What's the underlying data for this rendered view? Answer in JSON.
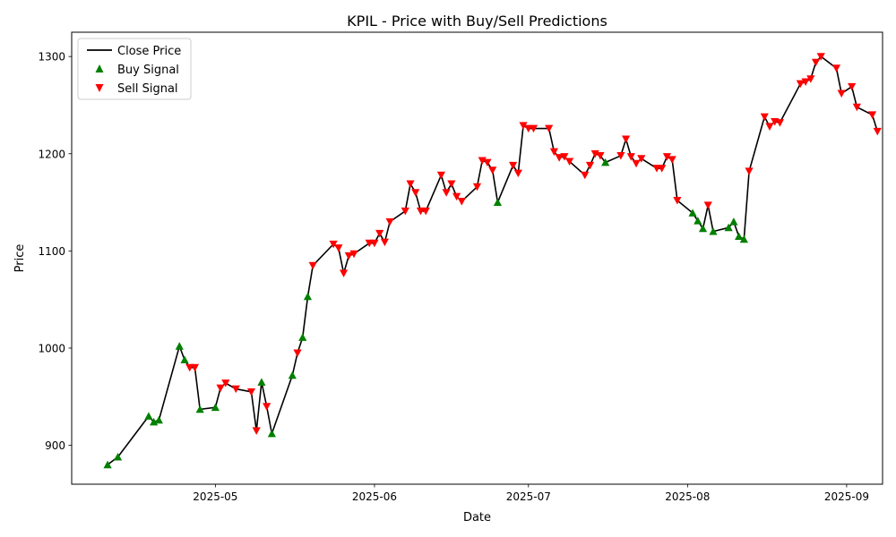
{
  "chart_data": {
    "type": "line",
    "title": "KPIL - Price with Buy/Sell Predictions",
    "xlabel": "Date",
    "ylabel": "Price",
    "xlim": [
      "2025-04-03",
      "2025-09-08"
    ],
    "ylim": [
      860,
      1325
    ],
    "x_ticks": [
      "2025-05-01",
      "2025-06-01",
      "2025-07-01",
      "2025-08-01",
      "2025-09-01"
    ],
    "x_tick_labels": [
      "2025-05",
      "2025-06",
      "2025-07",
      "2025-08",
      "2025-09"
    ],
    "y_ticks": [
      900,
      1000,
      1100,
      1200,
      1300
    ],
    "grid": false,
    "legend_position": "top-left",
    "series": [
      {
        "name": "Close Price",
        "kind": "line",
        "color": "#000000",
        "points": [
          [
            "2025-04-10",
            880
          ],
          [
            "2025-04-12",
            888
          ],
          [
            "2025-04-18",
            930
          ],
          [
            "2025-04-19",
            924
          ],
          [
            "2025-04-20",
            926
          ],
          [
            "2025-04-24",
            1002
          ],
          [
            "2025-04-25",
            988
          ],
          [
            "2025-04-26",
            980
          ],
          [
            "2025-04-27",
            980
          ],
          [
            "2025-04-28",
            937
          ],
          [
            "2025-05-01",
            939
          ],
          [
            "2025-05-02",
            959
          ],
          [
            "2025-05-03",
            964
          ],
          [
            "2025-05-05",
            958
          ],
          [
            "2025-05-08",
            955
          ],
          [
            "2025-05-09",
            915
          ],
          [
            "2025-05-10",
            965
          ],
          [
            "2025-05-11",
            940
          ],
          [
            "2025-05-12",
            912
          ],
          [
            "2025-05-16",
            972
          ],
          [
            "2025-05-17",
            995
          ],
          [
            "2025-05-18",
            1011
          ],
          [
            "2025-05-19",
            1053
          ],
          [
            "2025-05-20",
            1085
          ],
          [
            "2025-05-24",
            1107
          ],
          [
            "2025-05-25",
            1103
          ],
          [
            "2025-05-26",
            1077
          ],
          [
            "2025-05-27",
            1095
          ],
          [
            "2025-05-28",
            1097
          ],
          [
            "2025-05-31",
            1108
          ],
          [
            "2025-06-01",
            1108
          ],
          [
            "2025-06-02",
            1118
          ],
          [
            "2025-06-03",
            1109
          ],
          [
            "2025-06-04",
            1130
          ],
          [
            "2025-06-07",
            1141
          ],
          [
            "2025-06-08",
            1169
          ],
          [
            "2025-06-09",
            1160
          ],
          [
            "2025-06-10",
            1141
          ],
          [
            "2025-06-11",
            1141
          ],
          [
            "2025-06-14",
            1178
          ],
          [
            "2025-06-15",
            1160
          ],
          [
            "2025-06-16",
            1169
          ],
          [
            "2025-06-17",
            1156
          ],
          [
            "2025-06-18",
            1151
          ],
          [
            "2025-06-21",
            1166
          ],
          [
            "2025-06-22",
            1193
          ],
          [
            "2025-06-23",
            1191
          ],
          [
            "2025-06-24",
            1183
          ],
          [
            "2025-06-25",
            1150
          ],
          [
            "2025-06-28",
            1188
          ],
          [
            "2025-06-29",
            1180
          ],
          [
            "2025-06-30",
            1229
          ],
          [
            "2025-07-01",
            1226
          ],
          [
            "2025-07-02",
            1226
          ],
          [
            "2025-07-05",
            1226
          ],
          [
            "2025-07-06",
            1202
          ],
          [
            "2025-07-07",
            1196
          ],
          [
            "2025-07-08",
            1197
          ],
          [
            "2025-07-09",
            1192
          ],
          [
            "2025-07-12",
            1178
          ],
          [
            "2025-07-13",
            1188
          ],
          [
            "2025-07-14",
            1200
          ],
          [
            "2025-07-15",
            1198
          ],
          [
            "2025-07-16",
            1191
          ],
          [
            "2025-07-19",
            1198
          ],
          [
            "2025-07-20",
            1215
          ],
          [
            "2025-07-21",
            1197
          ],
          [
            "2025-07-22",
            1190
          ],
          [
            "2025-07-23",
            1195
          ],
          [
            "2025-07-26",
            1185
          ],
          [
            "2025-07-27",
            1185
          ],
          [
            "2025-07-28",
            1197
          ],
          [
            "2025-07-29",
            1194
          ],
          [
            "2025-07-30",
            1152
          ],
          [
            "2025-08-02",
            1139
          ],
          [
            "2025-08-03",
            1131
          ],
          [
            "2025-08-04",
            1123
          ],
          [
            "2025-08-05",
            1147
          ],
          [
            "2025-08-06",
            1120
          ],
          [
            "2025-08-09",
            1124
          ],
          [
            "2025-08-10",
            1130
          ],
          [
            "2025-08-11",
            1115
          ],
          [
            "2025-08-12",
            1112
          ],
          [
            "2025-08-13",
            1182
          ],
          [
            "2025-08-16",
            1238
          ],
          [
            "2025-08-17",
            1228
          ],
          [
            "2025-08-18",
            1233
          ],
          [
            "2025-08-19",
            1232
          ],
          [
            "2025-08-23",
            1272
          ],
          [
            "2025-08-24",
            1274
          ],
          [
            "2025-08-25",
            1277
          ],
          [
            "2025-08-26",
            1294
          ],
          [
            "2025-08-27",
            1300
          ],
          [
            "2025-08-30",
            1288
          ],
          [
            "2025-08-31",
            1262
          ],
          [
            "2025-09-02",
            1269
          ],
          [
            "2025-09-03",
            1248
          ],
          [
            "2025-09-06",
            1240
          ],
          [
            "2025-09-07",
            1223
          ]
        ]
      },
      {
        "name": "Buy Signal",
        "kind": "scatter",
        "marker": "triangle-up",
        "color": "#008000",
        "points": [
          [
            "2025-04-10",
            880
          ],
          [
            "2025-04-12",
            888
          ],
          [
            "2025-04-18",
            930
          ],
          [
            "2025-04-19",
            924
          ],
          [
            "2025-04-20",
            926
          ],
          [
            "2025-04-24",
            1002
          ],
          [
            "2025-04-25",
            988
          ],
          [
            "2025-04-28",
            937
          ],
          [
            "2025-05-01",
            939
          ],
          [
            "2025-05-10",
            965
          ],
          [
            "2025-05-12",
            912
          ],
          [
            "2025-05-16",
            972
          ],
          [
            "2025-05-18",
            1011
          ],
          [
            "2025-05-19",
            1053
          ],
          [
            "2025-06-25",
            1150
          ],
          [
            "2025-07-16",
            1191
          ],
          [
            "2025-08-02",
            1139
          ],
          [
            "2025-08-03",
            1131
          ],
          [
            "2025-08-04",
            1123
          ],
          [
            "2025-08-06",
            1120
          ],
          [
            "2025-08-09",
            1124
          ],
          [
            "2025-08-10",
            1130
          ],
          [
            "2025-08-11",
            1115
          ],
          [
            "2025-08-12",
            1112
          ]
        ]
      },
      {
        "name": "Sell Signal",
        "kind": "scatter",
        "marker": "triangle-down",
        "color": "#ff0000",
        "points": [
          [
            "2025-04-26",
            980
          ],
          [
            "2025-04-27",
            980
          ],
          [
            "2025-05-02",
            959
          ],
          [
            "2025-05-03",
            964
          ],
          [
            "2025-05-05",
            958
          ],
          [
            "2025-05-08",
            955
          ],
          [
            "2025-05-09",
            915
          ],
          [
            "2025-05-11",
            940
          ],
          [
            "2025-05-17",
            995
          ],
          [
            "2025-05-20",
            1085
          ],
          [
            "2025-05-24",
            1107
          ],
          [
            "2025-05-25",
            1103
          ],
          [
            "2025-05-26",
            1077
          ],
          [
            "2025-05-27",
            1095
          ],
          [
            "2025-05-28",
            1097
          ],
          [
            "2025-05-31",
            1108
          ],
          [
            "2025-06-01",
            1108
          ],
          [
            "2025-06-02",
            1118
          ],
          [
            "2025-06-03",
            1109
          ],
          [
            "2025-06-04",
            1130
          ],
          [
            "2025-06-07",
            1141
          ],
          [
            "2025-06-08",
            1169
          ],
          [
            "2025-06-09",
            1160
          ],
          [
            "2025-06-10",
            1141
          ],
          [
            "2025-06-11",
            1141
          ],
          [
            "2025-06-14",
            1178
          ],
          [
            "2025-06-15",
            1160
          ],
          [
            "2025-06-16",
            1169
          ],
          [
            "2025-06-17",
            1156
          ],
          [
            "2025-06-18",
            1151
          ],
          [
            "2025-06-21",
            1166
          ],
          [
            "2025-06-22",
            1193
          ],
          [
            "2025-06-23",
            1191
          ],
          [
            "2025-06-24",
            1183
          ],
          [
            "2025-06-28",
            1188
          ],
          [
            "2025-06-29",
            1180
          ],
          [
            "2025-06-30",
            1229
          ],
          [
            "2025-07-01",
            1226
          ],
          [
            "2025-07-02",
            1226
          ],
          [
            "2025-07-05",
            1226
          ],
          [
            "2025-07-06",
            1202
          ],
          [
            "2025-07-07",
            1196
          ],
          [
            "2025-07-08",
            1197
          ],
          [
            "2025-07-09",
            1192
          ],
          [
            "2025-07-12",
            1178
          ],
          [
            "2025-07-13",
            1188
          ],
          [
            "2025-07-14",
            1200
          ],
          [
            "2025-07-15",
            1198
          ],
          [
            "2025-07-19",
            1198
          ],
          [
            "2025-07-20",
            1215
          ],
          [
            "2025-07-21",
            1197
          ],
          [
            "2025-07-22",
            1190
          ],
          [
            "2025-07-23",
            1195
          ],
          [
            "2025-07-26",
            1185
          ],
          [
            "2025-07-27",
            1185
          ],
          [
            "2025-07-28",
            1197
          ],
          [
            "2025-07-29",
            1194
          ],
          [
            "2025-07-30",
            1152
          ],
          [
            "2025-08-05",
            1147
          ],
          [
            "2025-08-13",
            1182
          ],
          [
            "2025-08-16",
            1238
          ],
          [
            "2025-08-17",
            1228
          ],
          [
            "2025-08-18",
            1233
          ],
          [
            "2025-08-19",
            1232
          ],
          [
            "2025-08-23",
            1272
          ],
          [
            "2025-08-24",
            1274
          ],
          [
            "2025-08-25",
            1277
          ],
          [
            "2025-08-26",
            1294
          ],
          [
            "2025-08-27",
            1300
          ],
          [
            "2025-08-30",
            1288
          ],
          [
            "2025-08-31",
            1262
          ],
          [
            "2025-09-02",
            1269
          ],
          [
            "2025-09-03",
            1248
          ],
          [
            "2025-09-06",
            1240
          ],
          [
            "2025-09-07",
            1223
          ]
        ]
      }
    ]
  }
}
